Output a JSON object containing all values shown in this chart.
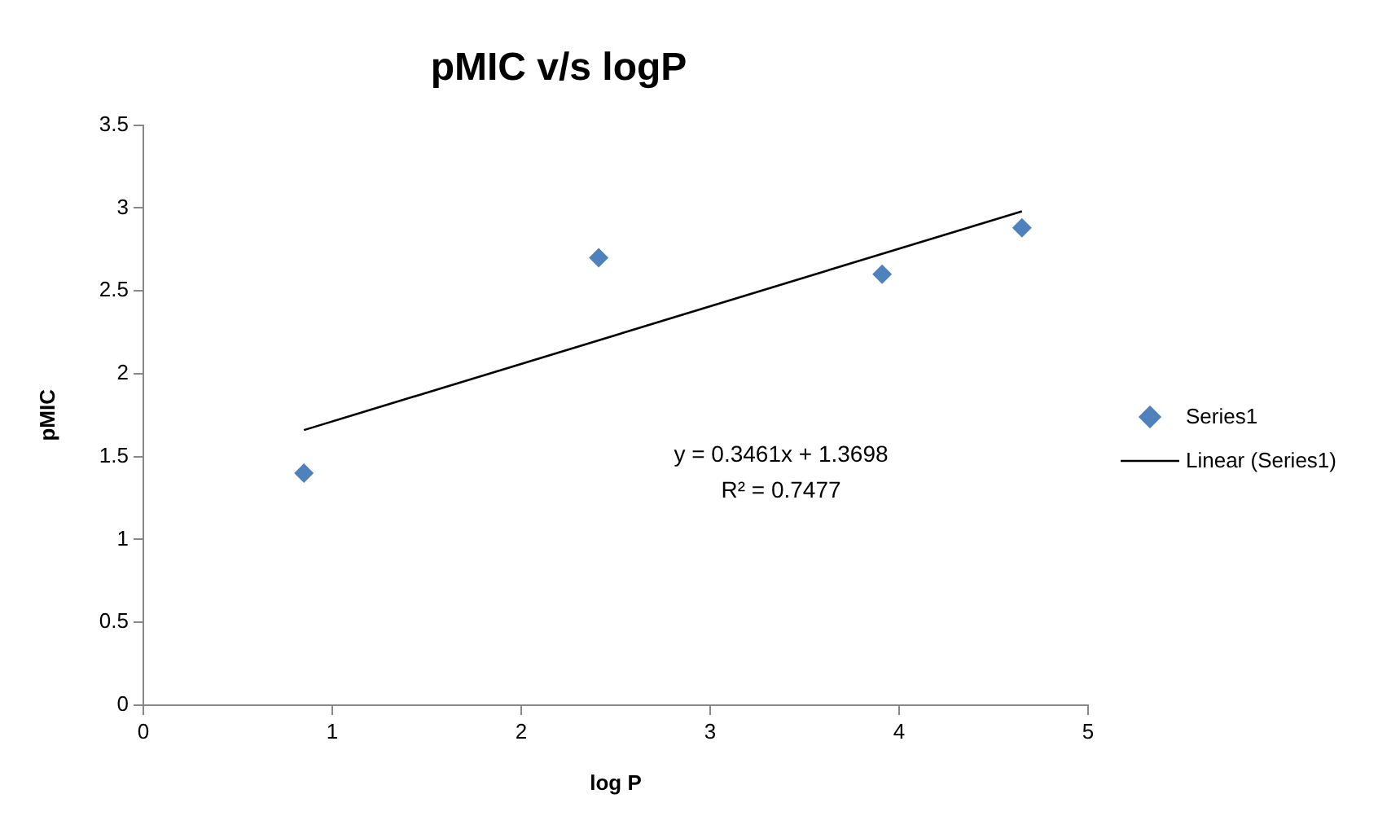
{
  "chart_data": {
    "type": "scatter",
    "title": "pMIC v/s logP",
    "xlabel": "log P",
    "ylabel": "pMIC",
    "x": [
      0.85,
      2.41,
      3.91,
      4.65
    ],
    "series": [
      {
        "name": "Series1",
        "color": "#4f81bd",
        "marker": "diamond",
        "values": [
          1.4,
          2.7,
          2.6,
          2.88
        ]
      },
      {
        "name": "Linear (Series1)",
        "type": "line",
        "color": "#000000",
        "marker": "none",
        "line_style": "solid",
        "x": [
          0.85,
          4.65
        ],
        "values": [
          1.66,
          2.98
        ]
      }
    ],
    "xlim": [
      0,
      5
    ],
    "xticks": [
      0,
      1,
      2,
      3,
      4,
      5
    ],
    "ylim": [
      0,
      3.5
    ],
    "yticks": [
      0,
      0.5,
      1,
      1.5,
      2,
      2.5,
      3,
      3.5
    ],
    "grid": false,
    "legend": "right",
    "annotations": [
      "y = 0.3461x + 1.3698",
      "R² = 0.7477"
    ]
  }
}
